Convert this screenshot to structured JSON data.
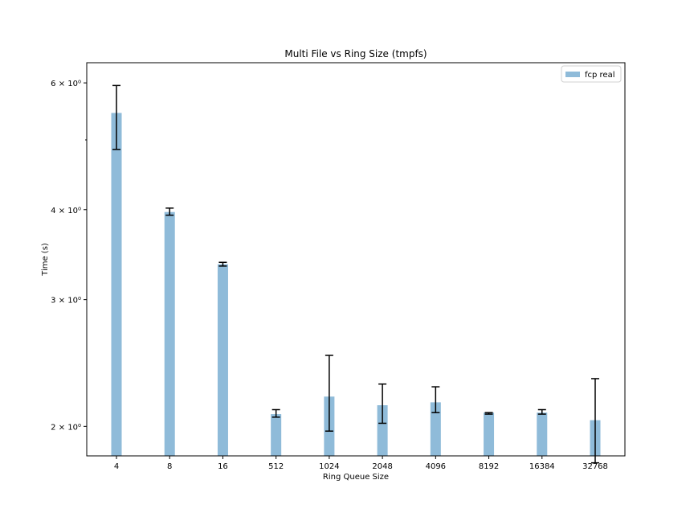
{
  "chart_data": {
    "type": "bar",
    "title": "Multi File vs Ring Size (tmpfs)",
    "xlabel": "Ring Queue Size",
    "ylabel": "Time (s)",
    "categories": [
      "4",
      "8",
      "16",
      "512",
      "1024",
      "2048",
      "4096",
      "8192",
      "16384",
      "32768"
    ],
    "series": [
      {
        "name": "fcp real",
        "values": [
          5.45,
          3.97,
          3.36,
          2.08,
          2.2,
          2.14,
          2.16,
          2.09,
          2.09,
          2.04
        ],
        "error_low": [
          4.85,
          3.93,
          3.34,
          2.06,
          1.97,
          2.02,
          2.09,
          2.08,
          2.08,
          1.78
        ],
        "error_high": [
          5.95,
          4.02,
          3.38,
          2.11,
          2.51,
          2.29,
          2.27,
          2.09,
          2.11,
          2.33
        ]
      }
    ],
    "yscale": "log",
    "ylim": [
      1.82,
      6.4
    ],
    "yticks": [
      {
        "value": 2,
        "label": "2 × 10⁰"
      },
      {
        "value": 3,
        "label": "3 × 10⁰"
      },
      {
        "value": 4,
        "label": "4 × 10⁰"
      },
      {
        "value": 6,
        "label": "6 × 10⁰"
      }
    ],
    "yminor_ticks": [
      5
    ],
    "grid": false,
    "legend_position": "top-right",
    "colors": {
      "bar": "#1f77b4",
      "bar_opacity": 0.5,
      "error": "#000000"
    }
  }
}
